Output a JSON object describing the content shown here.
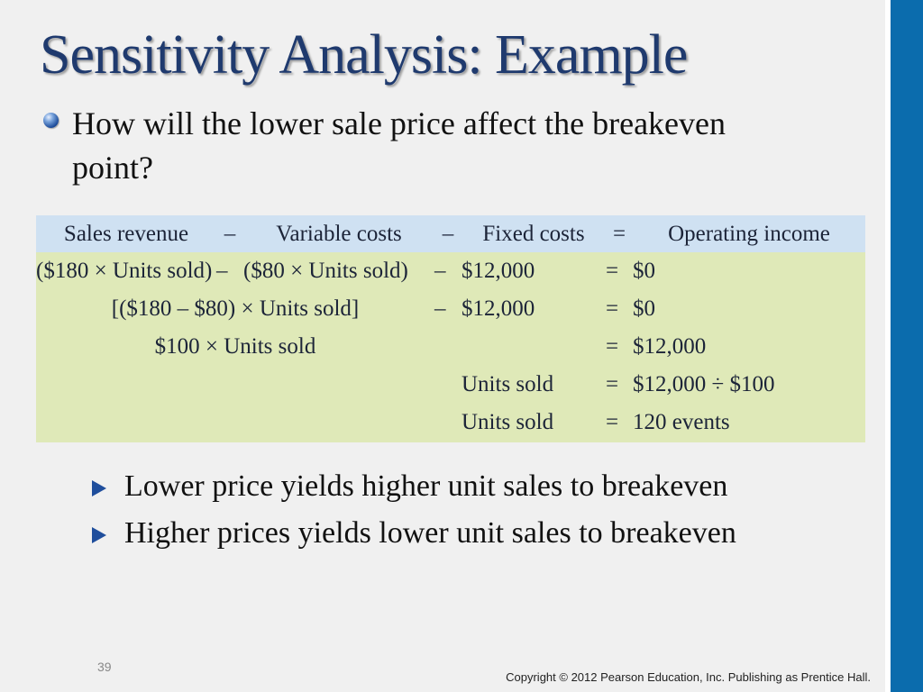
{
  "slide": {
    "title": "Sensitivity Analysis: Example",
    "bullet": "How will the lower sale price affect the breakeven point?",
    "page_number": "39",
    "copyright": "Copyright © 2012 Pearson Education, Inc. Publishing as Prentice Hall.",
    "accent_color": "#0b6cad",
    "title_color": "#1f3a6e"
  },
  "table": {
    "header": [
      "Sales revenue",
      "–",
      "Variable costs",
      "–",
      "Fixed costs",
      "=",
      "Operating income"
    ],
    "rows": [
      [
        "($180 × Units sold)",
        "–",
        "($80 × Units sold)",
        "–",
        "$12,000",
        "=",
        "$0"
      ],
      [
        "[($180 – $80) × Units sold]",
        "–",
        "$12,000",
        "=",
        "$0"
      ],
      [
        "$100 × Units sold",
        "=",
        "$12,000"
      ],
      [
        "Units sold",
        "=",
        "$12,000 ÷ $100"
      ],
      [
        "Units sold",
        "=",
        "120 events"
      ]
    ],
    "header_color": "#cfe1f2",
    "body_color": "#dfe9b8"
  },
  "sub_bullets": [
    "Lower price yields higher unit sales to breakeven",
    "Higher prices yields lower unit sales to breakeven"
  ]
}
